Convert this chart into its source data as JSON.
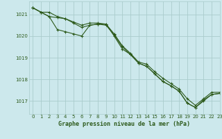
{
  "title": "Graphe pression niveau de la mer (hPa)",
  "background_color": "#cce8ec",
  "grid_color": "#aacccc",
  "line_color": "#2d5a1b",
  "text_color": "#2d5a1b",
  "xlim": [
    -0.5,
    23
  ],
  "ylim": [
    1016.4,
    1021.6
  ],
  "yticks": [
    1017,
    1018,
    1019,
    1020,
    1021
  ],
  "xticks": [
    0,
    1,
    2,
    3,
    4,
    5,
    6,
    7,
    8,
    9,
    10,
    11,
    12,
    13,
    14,
    15,
    16,
    17,
    18,
    19,
    20,
    21,
    22,
    23
  ],
  "series": [
    [
      1021.3,
      1021.1,
      1021.1,
      1020.9,
      1020.8,
      1020.6,
      1020.4,
      1020.5,
      1020.55,
      1020.5,
      1020.05,
      1019.5,
      1019.15,
      1018.75,
      1018.6,
      1018.25,
      1017.9,
      1017.7,
      1017.45,
      1016.9,
      1016.7,
      1017.0,
      1017.3,
      1017.35
    ],
    [
      1021.3,
      1021.1,
      1020.9,
      1020.3,
      1020.2,
      1020.1,
      1020.0,
      1020.5,
      1020.55,
      1020.55,
      1020.0,
      1019.4,
      1019.15,
      1018.75,
      1018.6,
      1018.25,
      1017.9,
      1017.7,
      1017.45,
      1016.9,
      1016.7,
      1017.05,
      1017.3,
      1017.35
    ],
    [
      1021.3,
      1021.1,
      1020.9,
      1020.85,
      1020.8,
      1020.65,
      1020.5,
      1020.6,
      1020.6,
      1020.55,
      1020.1,
      1019.55,
      1019.2,
      1018.8,
      1018.7,
      1018.35,
      1018.05,
      1017.8,
      1017.55,
      1017.1,
      1016.8,
      1017.1,
      1017.4,
      1017.4
    ]
  ]
}
